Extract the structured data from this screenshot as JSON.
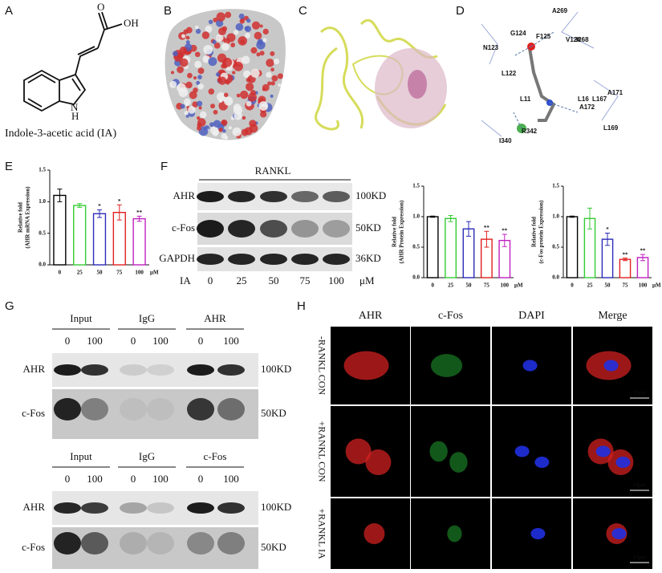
{
  "panels": {
    "a": {
      "label": "A",
      "atoms": [
        "O",
        "OH",
        "N",
        "H"
      ],
      "caption": "Indole-3-acetic acid (IA)"
    },
    "b": {
      "label": "B"
    },
    "c": {
      "label": "C"
    },
    "d": {
      "label": "D",
      "residues": [
        "A269",
        "G124",
        "F125",
        "V126",
        "I268",
        "N123",
        "L122",
        "A171",
        "L167",
        "L16",
        "A172",
        "L11",
        "R342",
        "I340",
        "L169"
      ]
    },
    "e": {
      "label": "E"
    },
    "f": {
      "label": "F",
      "treatment": "RANKL",
      "proteins": [
        "AHR",
        "c-Fos",
        "GAPDH"
      ],
      "sizes": [
        "100KD",
        "50KD",
        "36KD"
      ],
      "dose_label": "IA",
      "doses": [
        "0",
        "25",
        "50",
        "75",
        "100"
      ],
      "unit": "μM"
    },
    "g": {
      "label": "G",
      "blots": [
        {
          "groups": [
            "Input",
            "IgG",
            "AHR"
          ],
          "doses": [
            "0",
            "100",
            "0",
            "100",
            "0",
            "100"
          ],
          "proteins": [
            "AHR",
            "c-Fos"
          ],
          "sizes": [
            "100KD",
            "50KD"
          ]
        },
        {
          "groups": [
            "Input",
            "IgG",
            "c-Fos"
          ],
          "doses": [
            "0",
            "100",
            "0",
            "100",
            "0",
            "100"
          ],
          "proteins": [
            "AHR",
            "c-Fos"
          ],
          "sizes": [
            "100KD",
            "50KD"
          ]
        }
      ]
    },
    "h": {
      "label": "H",
      "channels": [
        "AHR",
        "c-Fos",
        "DAPI",
        "Merge"
      ],
      "channel_colors": [
        "#c0392b",
        "#2e9e3e",
        "#2a2ad0",
        "#111111"
      ],
      "rows": [
        "-RANKL CON",
        "+RANKL CON",
        "+RANKL IA"
      ],
      "scale_bar": "10μm"
    }
  },
  "chart_data": [
    {
      "type": "bar",
      "y_label": [
        "Relative fold",
        "(AHR mRNA Expression)"
      ],
      "categories": [
        "0",
        "25",
        "50",
        "75",
        "100"
      ],
      "unit": "μM",
      "values": [
        1.1,
        0.94,
        0.81,
        0.83,
        0.73
      ],
      "errors": [
        0.1,
        0.03,
        0.06,
        0.12,
        0.04
      ],
      "significance": [
        null,
        null,
        "*",
        "*",
        "**"
      ],
      "colors": [
        "#000000",
        "#33cc33",
        "#2b2bb8",
        "#e02020",
        "#c020c0"
      ],
      "ylim": [
        0,
        1.5
      ],
      "yticks": [
        {
          "value": 0,
          "label": "0.0"
        },
        0.5,
        {
          "value": 1,
          "label": "1.0"
        },
        1.5
      ]
    },
    {
      "type": "bar",
      "y_label": [
        "Relative fold",
        "(AHR Protein Expression)"
      ],
      "categories": [
        "0",
        "25",
        "50",
        "75",
        "100"
      ],
      "unit": "μM",
      "values": [
        1.0,
        0.97,
        0.8,
        0.63,
        0.61
      ],
      "errors": [
        0.01,
        0.05,
        0.12,
        0.13,
        0.1
      ],
      "significance": [
        null,
        null,
        null,
        "**",
        "**"
      ],
      "colors": [
        "#000000",
        "#33cc33",
        "#2b2bb8",
        "#e02020",
        "#c020c0"
      ],
      "ylim": [
        0,
        1.5
      ],
      "yticks": [
        {
          "value": 0,
          "label": "0.0"
        },
        0.5,
        {
          "value": 1,
          "label": "1.0"
        },
        1.5
      ]
    },
    {
      "type": "bar",
      "y_label": [
        "Relative fold",
        "(c-Fos protein Expression)"
      ],
      "categories": [
        "0",
        "25",
        "50",
        "75",
        "100"
      ],
      "unit": "μM",
      "values": [
        1.0,
        0.97,
        0.63,
        0.3,
        0.33
      ],
      "errors": [
        0.01,
        0.17,
        0.1,
        0.02,
        0.05
      ],
      "significance": [
        null,
        null,
        "*",
        "**",
        "**"
      ],
      "colors": [
        "#000000",
        "#33cc33",
        "#2b2bb8",
        "#e02020",
        "#c020c0"
      ],
      "ylim": [
        0,
        1.5
      ],
      "yticks": [
        {
          "value": 0,
          "label": "0.0"
        },
        0.5,
        {
          "value": 1,
          "label": "1.0"
        },
        1.5
      ]
    }
  ]
}
